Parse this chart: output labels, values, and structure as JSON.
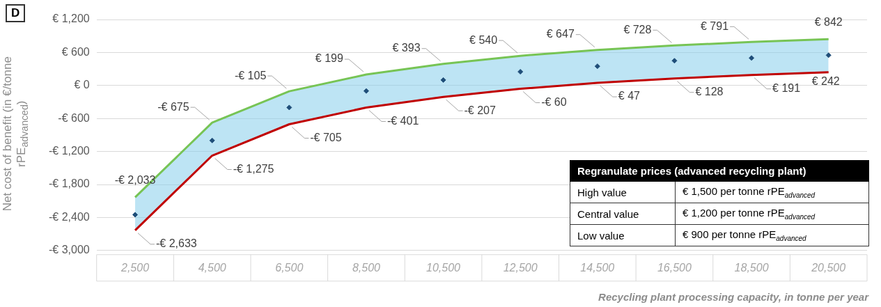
{
  "chart_data": {
    "type": "line",
    "title": "D",
    "xlabel": "Recycling plant processing capacity, in tonne per year",
    "ylabel": "Net cost of benefit (in €/tonne rPE$_{advanced}$)",
    "categories": [
      "2,500",
      "4,500",
      "6,500",
      "8,500",
      "10,500",
      "12,500",
      "14,500",
      "16,500",
      "18,500",
      "20,500"
    ],
    "series": [
      {
        "type": "line",
        "color": "#77c455",
        "values": [
          -2033,
          -675,
          -105,
          199,
          393,
          540,
          647,
          728,
          791,
          842
        ],
        "value_labels": [
          "-€ 2,033",
          "-€ 675",
          "-€ 105",
          "€ 199",
          "€ 393",
          "€ 540",
          "€ 647",
          "€ 728",
          "€ 791",
          "€ 842"
        ]
      },
      {
        "type": "line",
        "color": "#c00000",
        "values": [
          -2633,
          -1275,
          -705,
          -401,
          -207,
          -60,
          47,
          128,
          191,
          242
        ],
        "value_labels": [
          "-€ 2,633",
          "-€ 1,275",
          "-€ 705",
          "-€ 401",
          "-€ 207",
          "-€ 60",
          "€ 47",
          "€ 128",
          "€ 191",
          "€ 242"
        ]
      },
      {
        "type": "scatter",
        "color": "#1f4e79",
        "marker": "diamond",
        "values": [
          -2350,
          -1000,
          -400,
          -100,
          100,
          250,
          350,
          450,
          500,
          550
        ],
        "lower": [
          -2633,
          -1275,
          -705,
          -401,
          -207,
          -60,
          47,
          128,
          191,
          242
        ],
        "upper": [
          -2033,
          -675,
          -105,
          199,
          393,
          540,
          647,
          728,
          791,
          842
        ]
      }
    ],
    "ylim": [
      -3000,
      1200
    ],
    "yticks": [
      {
        "value": -3000,
        "label": "-€ 3,000"
      },
      {
        "value": -2400,
        "label": "-€ 2,400"
      },
      {
        "value": -1800,
        "label": "-€ 1,800"
      },
      {
        "value": -1200,
        "label": "-€ 1,200"
      },
      {
        "value": -600,
        "label": "-€ 600"
      },
      {
        "value": 0,
        "label": "€ 0"
      },
      {
        "value": 600,
        "label": "€ 600"
      },
      {
        "value": 1200,
        "label": "€ 1,200"
      }
    ],
    "grid": "y",
    "legend": false,
    "annotations": [
      "Regranulate prices (advanced recycling plant)",
      "High value",
      "€ 1,500 per tonne rPE$_{advanced}$",
      "Central value",
      "€ 1,200 per tonne rPE$_{advanced}$",
      "Low value",
      "€ 900 per tonne rPE$_{advanced}$"
    ]
  }
}
